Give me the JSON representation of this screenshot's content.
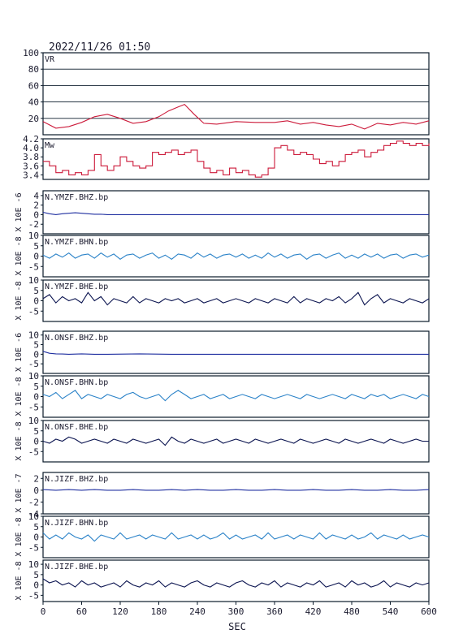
{
  "header": {
    "datetime": "2022/11/26  01:50"
  },
  "chart_data": {
    "type": "line",
    "xlabel": "SEC",
    "xlim": [
      0,
      600
    ],
    "xticks": [
      0,
      60,
      120,
      180,
      240,
      300,
      360,
      420,
      480,
      540,
      600
    ],
    "panels": [
      {
        "id": "vr",
        "label": "VR",
        "color": "#cc1a3a",
        "ylim": [
          0,
          100
        ],
        "yticks": [
          20,
          40,
          60,
          80,
          100
        ],
        "ylabel": "",
        "grid": true,
        "x": [
          0,
          20,
          40,
          60,
          80,
          100,
          120,
          140,
          160,
          180,
          195,
          210,
          220,
          235,
          250,
          270,
          300,
          330,
          360,
          380,
          400,
          420,
          440,
          460,
          480,
          500,
          520,
          540,
          560,
          580,
          600
        ],
        "values": [
          16,
          8,
          10,
          15,
          22,
          25,
          20,
          14,
          16,
          22,
          29,
          34,
          37,
          25,
          14,
          13,
          16,
          15,
          15,
          17,
          13,
          15,
          12,
          10,
          13,
          7,
          14,
          12,
          15,
          13,
          17
        ]
      },
      {
        "id": "mw",
        "label": "Mw",
        "color": "#cc1a3a",
        "ylim": [
          3.3,
          4.2
        ],
        "yticks": [
          3.4,
          3.6,
          3.8,
          4.0,
          4.2
        ],
        "ylabel": "",
        "grid": false,
        "step": true,
        "x": [
          0,
          10,
          20,
          30,
          40,
          50,
          60,
          70,
          80,
          90,
          100,
          110,
          120,
          130,
          140,
          150,
          160,
          170,
          180,
          190,
          200,
          210,
          220,
          230,
          240,
          250,
          260,
          270,
          280,
          290,
          300,
          310,
          320,
          330,
          340,
          350,
          360,
          370,
          380,
          390,
          400,
          410,
          420,
          430,
          440,
          450,
          460,
          470,
          480,
          490,
          500,
          510,
          520,
          530,
          540,
          550,
          560,
          570,
          580,
          590,
          600
        ],
        "values": [
          3.7,
          3.6,
          3.45,
          3.5,
          3.4,
          3.45,
          3.4,
          3.5,
          3.85,
          3.6,
          3.5,
          3.6,
          3.8,
          3.7,
          3.6,
          3.55,
          3.6,
          3.9,
          3.85,
          3.9,
          3.95,
          3.85,
          3.9,
          3.95,
          3.7,
          3.55,
          3.45,
          3.5,
          3.4,
          3.55,
          3.45,
          3.5,
          3.4,
          3.35,
          3.4,
          3.55,
          4.0,
          4.05,
          3.95,
          3.85,
          3.9,
          3.85,
          3.75,
          3.65,
          3.7,
          3.6,
          3.7,
          3.85,
          3.9,
          3.95,
          3.8,
          3.9,
          3.95,
          4.05,
          4.1,
          4.15,
          4.1,
          4.05,
          4.1,
          4.05,
          4.1
        ]
      },
      {
        "id": "ymzf-bhz",
        "label": "N.YMZF.BHZ.bp",
        "color": "#1f2fa0",
        "ylim": [
          -4,
          5
        ],
        "yticks": [
          -2,
          0,
          2,
          4
        ],
        "ylabel": "X 10E -6",
        "x": [
          0,
          10,
          20,
          30,
          40,
          50,
          60,
          70,
          80,
          90,
          100,
          120,
          150,
          200,
          300,
          400,
          500,
          600
        ],
        "values": [
          0.5,
          0.2,
          0.0,
          0.2,
          0.3,
          0.4,
          0.3,
          0.2,
          0.1,
          0.1,
          0.0,
          0.0,
          0.0,
          0.0,
          0.0,
          0.0,
          0.0,
          0.0
        ]
      },
      {
        "id": "ymzf-bhn",
        "label": "N.YMZF.BHN.bp",
        "color": "#2a82c8",
        "ylim": [
          -10,
          10
        ],
        "yticks": [
          -5,
          0,
          5,
          10
        ],
        "ylabel": "X 10E -8",
        "x": [
          0,
          10,
          20,
          30,
          40,
          50,
          60,
          70,
          80,
          90,
          100,
          110,
          120,
          130,
          140,
          150,
          160,
          170,
          180,
          190,
          200,
          210,
          220,
          230,
          240,
          250,
          260,
          270,
          280,
          290,
          300,
          310,
          320,
          330,
          340,
          350,
          360,
          370,
          380,
          390,
          400,
          410,
          420,
          430,
          440,
          450,
          460,
          470,
          480,
          490,
          500,
          510,
          520,
          530,
          540,
          550,
          560,
          570,
          580,
          590,
          600
        ],
        "values": [
          0.5,
          -1,
          1,
          -0.5,
          1.5,
          -1,
          0.5,
          1,
          -1,
          1.5,
          -0.5,
          1,
          -1.5,
          0.5,
          1,
          -1,
          0.5,
          1.5,
          -1,
          0.5,
          -1.5,
          1,
          0.5,
          -1,
          1.5,
          -0.5,
          1,
          -1,
          0.5,
          1,
          -0.5,
          1,
          -1,
          0.5,
          -1,
          1.5,
          -0.5,
          1,
          -1,
          0.5,
          1,
          -1.5,
          0.5,
          1,
          -1,
          0.5,
          1.5,
          -1,
          0.5,
          -1,
          1,
          -0.5,
          1,
          -1,
          0.5,
          1,
          -1,
          0.5,
          1,
          -0.5,
          0.5
        ]
      },
      {
        "id": "ymzf-bhe",
        "label": "N.YMZF.BHE.bp",
        "color": "#0b1450",
        "ylim": [
          -10,
          10
        ],
        "yticks": [
          -5,
          0,
          5,
          10
        ],
        "ylabel": "X 10E -8",
        "x": [
          0,
          10,
          20,
          30,
          40,
          50,
          60,
          70,
          80,
          90,
          100,
          110,
          120,
          130,
          140,
          150,
          160,
          170,
          180,
          190,
          200,
          210,
          220,
          230,
          240,
          250,
          260,
          270,
          280,
          290,
          300,
          310,
          320,
          330,
          340,
          350,
          360,
          370,
          380,
          390,
          400,
          410,
          420,
          430,
          440,
          450,
          460,
          470,
          480,
          490,
          500,
          510,
          520,
          530,
          540,
          550,
          560,
          570,
          580,
          590,
          600
        ],
        "values": [
          1,
          3,
          -1,
          2,
          0,
          1,
          -1,
          4,
          0,
          2,
          -2,
          1,
          0,
          -1,
          2,
          -1,
          1,
          0,
          -1,
          1,
          0,
          1,
          -1,
          0,
          1,
          -1,
          0,
          1,
          -1,
          0,
          1,
          0,
          -1,
          1,
          0,
          -1,
          1,
          0,
          -1,
          2,
          -1,
          1,
          0,
          -1,
          1,
          0,
          2,
          -1,
          1,
          4,
          -2,
          1,
          3,
          -1,
          1,
          0,
          -1,
          1,
          0,
          -1,
          1
        ]
      },
      {
        "id": "onsf-bhz",
        "label": "N.ONSF.BHZ.bp",
        "color": "#1f2fa0",
        "ylim": [
          -10,
          12
        ],
        "yticks": [
          -5,
          0,
          5,
          10
        ],
        "ylabel": "X 10E -6",
        "x": [
          0,
          10,
          20,
          30,
          40,
          60,
          80,
          100,
          150,
          200,
          250,
          300,
          350,
          400,
          450,
          500,
          550,
          600
        ],
        "values": [
          1.5,
          0.5,
          0.2,
          0.1,
          0.0,
          0.2,
          0.0,
          0.0,
          0.2,
          0.0,
          0.0,
          0.0,
          0.0,
          0.0,
          0.0,
          0.0,
          0.0,
          0.0
        ]
      },
      {
        "id": "onsf-bhn",
        "label": "N.ONSF.BHN.bp",
        "color": "#2a82c8",
        "ylim": [
          -10,
          10
        ],
        "yticks": [
          -5,
          0,
          5,
          10
        ],
        "ylabel": "X 10E -8",
        "x": [
          0,
          10,
          20,
          30,
          40,
          50,
          60,
          70,
          80,
          90,
          100,
          110,
          120,
          130,
          140,
          150,
          160,
          170,
          180,
          190,
          200,
          210,
          220,
          230,
          240,
          250,
          260,
          270,
          280,
          290,
          300,
          310,
          320,
          330,
          340,
          350,
          360,
          370,
          380,
          390,
          400,
          410,
          420,
          430,
          440,
          450,
          460,
          470,
          480,
          490,
          500,
          510,
          520,
          530,
          540,
          550,
          560,
          570,
          580,
          590,
          600
        ],
        "values": [
          1,
          0,
          2,
          -1,
          1,
          3,
          -1,
          1,
          0,
          -1,
          1,
          0,
          -1,
          1,
          2,
          0,
          -1,
          0,
          1,
          -2,
          1,
          3,
          1,
          -1,
          0,
          1,
          -1,
          0,
          1,
          -1,
          0,
          1,
          0,
          -1,
          1,
          0,
          -1,
          0,
          1,
          0,
          -1,
          1,
          0,
          -1,
          0,
          1,
          0,
          -1,
          1,
          0,
          -1,
          1,
          0,
          1,
          -1,
          0,
          1,
          0,
          -1,
          1,
          0
        ]
      },
      {
        "id": "onsf-bhe",
        "label": "N.ONSF.BHE.bp",
        "color": "#0b1450",
        "ylim": [
          -10,
          10
        ],
        "yticks": [
          -5,
          0,
          5,
          10
        ],
        "ylabel": "X 10E -8",
        "x": [
          0,
          10,
          20,
          30,
          40,
          50,
          60,
          70,
          80,
          90,
          100,
          110,
          120,
          130,
          140,
          150,
          160,
          170,
          180,
          190,
          200,
          210,
          220,
          230,
          240,
          250,
          260,
          270,
          280,
          290,
          300,
          310,
          320,
          330,
          340,
          350,
          360,
          370,
          380,
          390,
          400,
          410,
          420,
          430,
          440,
          450,
          460,
          470,
          480,
          490,
          500,
          510,
          520,
          530,
          540,
          550,
          560,
          570,
          580,
          590,
          600
        ],
        "values": [
          0,
          -1,
          1,
          0,
          2,
          1,
          -1,
          0,
          1,
          0,
          -1,
          1,
          0,
          -1,
          1,
          0,
          -1,
          0,
          1,
          -2,
          2,
          0,
          -1,
          1,
          0,
          -1,
          0,
          1,
          -1,
          0,
          1,
          0,
          -1,
          1,
          0,
          -1,
          0,
          1,
          0,
          -1,
          1,
          0,
          -1,
          0,
          1,
          0,
          -1,
          1,
          0,
          -1,
          0,
          1,
          0,
          -1,
          1,
          0,
          -1,
          0,
          1,
          0,
          0
        ]
      },
      {
        "id": "jizf-bhz",
        "label": "N.JIZF.BHZ.bp",
        "color": "#1f2fa0",
        "ylim": [
          -4,
          3
        ],
        "yticks": [
          -4,
          -2,
          0,
          2
        ],
        "ylabel": "X 10E -7",
        "x": [
          0,
          20,
          40,
          60,
          80,
          100,
          120,
          140,
          160,
          180,
          200,
          220,
          240,
          260,
          280,
          300,
          320,
          340,
          360,
          380,
          400,
          420,
          440,
          460,
          480,
          500,
          520,
          540,
          560,
          580,
          600
        ],
        "values": [
          0.1,
          0.0,
          0.1,
          0.0,
          0.1,
          0.0,
          0.0,
          0.1,
          0.0,
          0.0,
          0.1,
          0.0,
          0.1,
          0.0,
          0.0,
          0.1,
          0.0,
          0.0,
          0.1,
          0.0,
          0.0,
          0.1,
          0.0,
          0.0,
          0.1,
          0.0,
          0.0,
          0.1,
          0.0,
          0.0,
          0.1
        ]
      },
      {
        "id": "jizf-bhn",
        "label": "N.JIZF.BHN.bp",
        "color": "#2a82c8",
        "ylim": [
          -10,
          10
        ],
        "yticks": [
          -5,
          0,
          5,
          10
        ],
        "ylabel": "X 10E -8",
        "x": [
          0,
          10,
          20,
          30,
          40,
          50,
          60,
          70,
          80,
          90,
          100,
          110,
          120,
          130,
          140,
          150,
          160,
          170,
          180,
          190,
          200,
          210,
          220,
          230,
          240,
          250,
          260,
          270,
          280,
          290,
          300,
          310,
          320,
          330,
          340,
          350,
          360,
          370,
          380,
          390,
          400,
          410,
          420,
          430,
          440,
          450,
          460,
          470,
          480,
          490,
          500,
          510,
          520,
          530,
          540,
          550,
          560,
          570,
          580,
          590,
          600
        ],
        "values": [
          2,
          -1,
          1,
          -1,
          2,
          0,
          -1,
          1,
          -2,
          1,
          0,
          -1,
          2,
          -1,
          0,
          1,
          -1,
          1,
          0,
          -1,
          2,
          -1,
          0,
          1,
          -1,
          1,
          -1,
          0,
          2,
          -1,
          1,
          -1,
          0,
          1,
          -1,
          2,
          -1,
          0,
          1,
          -1,
          1,
          0,
          -1,
          2,
          -1,
          1,
          0,
          -1,
          1,
          -1,
          0,
          2,
          -1,
          1,
          0,
          -1,
          1,
          -1,
          0,
          1,
          0
        ]
      },
      {
        "id": "jizf-bhe",
        "label": "N.JIZF.BHE.bp",
        "color": "#0b1450",
        "ylim": [
          -8,
          12
        ],
        "yticks": [
          -5,
          0,
          5,
          10
        ],
        "ylabel": "X 10E -8",
        "x": [
          0,
          10,
          20,
          30,
          40,
          50,
          60,
          70,
          80,
          90,
          100,
          110,
          120,
          130,
          140,
          150,
          160,
          170,
          180,
          190,
          200,
          210,
          220,
          230,
          240,
          250,
          260,
          270,
          280,
          290,
          300,
          310,
          320,
          330,
          340,
          350,
          360,
          370,
          380,
          390,
          400,
          410,
          420,
          430,
          440,
          450,
          460,
          470,
          480,
          490,
          500,
          510,
          520,
          530,
          540,
          550,
          560,
          570,
          580,
          590,
          600
        ],
        "values": [
          3,
          1,
          2,
          0,
          1,
          -1,
          2,
          0,
          1,
          -1,
          0,
          1,
          -1,
          2,
          0,
          -1,
          1,
          0,
          2,
          -1,
          1,
          0,
          -1,
          1,
          2,
          0,
          -1,
          1,
          0,
          -1,
          1,
          2,
          0,
          -1,
          1,
          0,
          2,
          -1,
          1,
          0,
          -1,
          1,
          0,
          2,
          -1,
          0,
          1,
          -1,
          2,
          0,
          1,
          -1,
          0,
          2,
          -1,
          1,
          0,
          -1,
          1,
          0,
          1
        ]
      }
    ]
  }
}
